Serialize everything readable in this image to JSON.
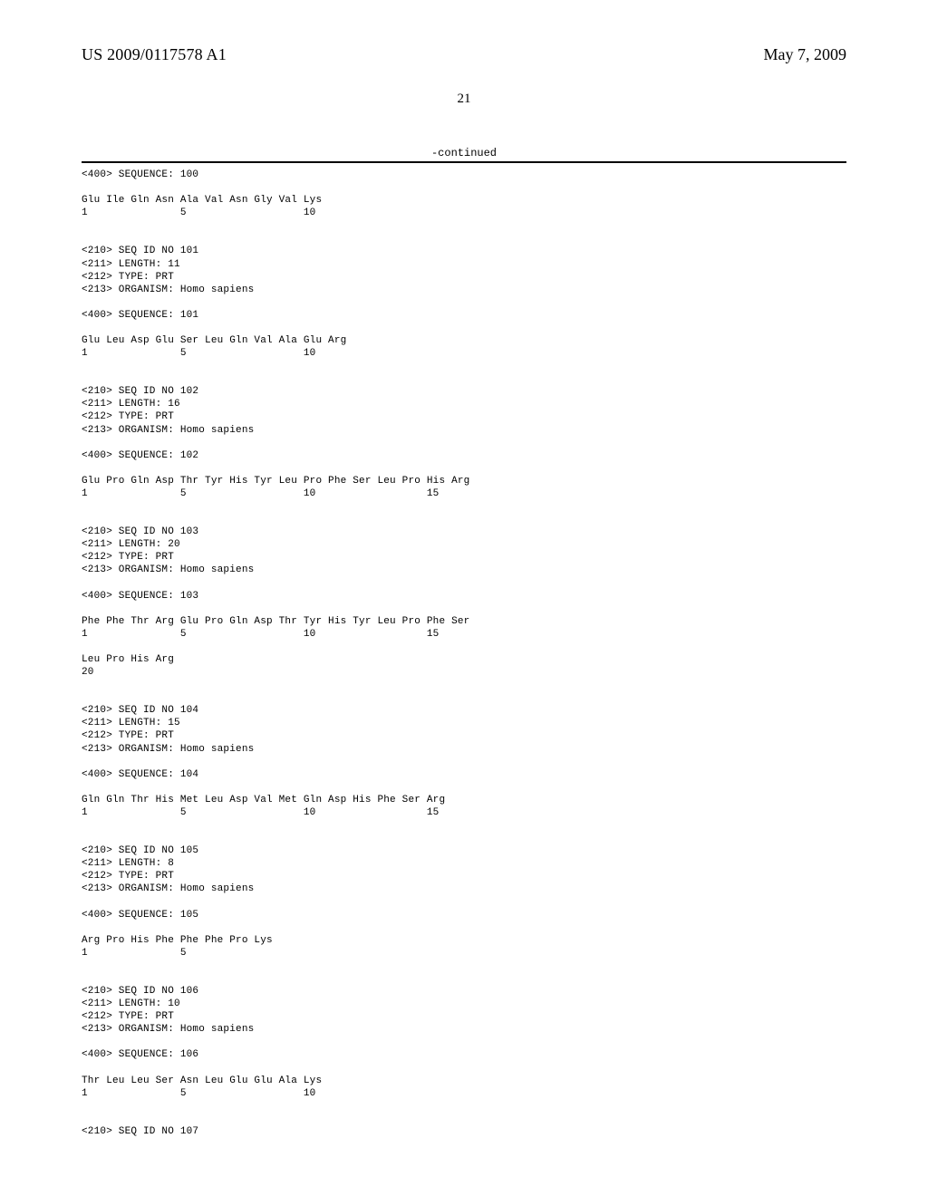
{
  "header": {
    "patent_no": "US 2009/0117578 A1",
    "date": "May 7, 2009"
  },
  "page_number": "21",
  "continued_label": "-continued",
  "sequence_text": "<400> SEQUENCE: 100\n\nGlu Ile Gln Asn Ala Val Asn Gly Val Lys\n1               5                   10\n\n\n<210> SEQ ID NO 101\n<211> LENGTH: 11\n<212> TYPE: PRT\n<213> ORGANISM: Homo sapiens\n\n<400> SEQUENCE: 101\n\nGlu Leu Asp Glu Ser Leu Gln Val Ala Glu Arg\n1               5                   10\n\n\n<210> SEQ ID NO 102\n<211> LENGTH: 16\n<212> TYPE: PRT\n<213> ORGANISM: Homo sapiens\n\n<400> SEQUENCE: 102\n\nGlu Pro Gln Asp Thr Tyr His Tyr Leu Pro Phe Ser Leu Pro His Arg\n1               5                   10                  15\n\n\n<210> SEQ ID NO 103\n<211> LENGTH: 20\n<212> TYPE: PRT\n<213> ORGANISM: Homo sapiens\n\n<400> SEQUENCE: 103\n\nPhe Phe Thr Arg Glu Pro Gln Asp Thr Tyr His Tyr Leu Pro Phe Ser\n1               5                   10                  15\n\nLeu Pro His Arg\n20\n\n\n<210> SEQ ID NO 104\n<211> LENGTH: 15\n<212> TYPE: PRT\n<213> ORGANISM: Homo sapiens\n\n<400> SEQUENCE: 104\n\nGln Gln Thr His Met Leu Asp Val Met Gln Asp His Phe Ser Arg\n1               5                   10                  15\n\n\n<210> SEQ ID NO 105\n<211> LENGTH: 8\n<212> TYPE: PRT\n<213> ORGANISM: Homo sapiens\n\n<400> SEQUENCE: 105\n\nArg Pro His Phe Phe Phe Pro Lys\n1               5\n\n\n<210> SEQ ID NO 106\n<211> LENGTH: 10\n<212> TYPE: PRT\n<213> ORGANISM: Homo sapiens\n\n<400> SEQUENCE: 106\n\nThr Leu Leu Ser Asn Leu Glu Glu Ala Lys\n1               5                   10\n\n\n<210> SEQ ID NO 107"
}
